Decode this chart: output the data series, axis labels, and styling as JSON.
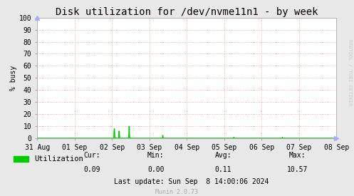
{
  "title": "Disk utilization for /dev/nvme11n1 - by week",
  "ylabel": "% busy",
  "bg_color": "#e8e8e8",
  "plot_bg_color": "#ffffff",
  "grid_color": "#ff9999",
  "line_color": "#00cc00",
  "fill_color": "#00cc00",
  "ylim": [
    0,
    100
  ],
  "yticks": [
    0,
    10,
    20,
    30,
    40,
    50,
    60,
    70,
    80,
    90,
    100
  ],
  "xtick_labels": [
    "31 Aug",
    "01 Sep",
    "02 Sep",
    "03 Sep",
    "04 Sep",
    "05 Sep",
    "06 Sep",
    "07 Sep",
    "08 Sep"
  ],
  "legend_label": "Utilization",
  "legend_color": "#00cc00",
  "cur_label": "Cur:",
  "cur": "0.09",
  "min_label": "Min:",
  "min": "0.00",
  "avg_label": "Avg:",
  "avg": "0.11",
  "max_label": "Max:",
  "max": "10.57",
  "last_update": "Last update: Sun Sep  8 14:00:06 2024",
  "munin_version": "Munin 2.0.73",
  "rrdtool_label": "RRDTOOL / TOBI OETIKER",
  "title_fontsize": 10,
  "axis_fontsize": 7,
  "legend_fontsize": 7.5,
  "stats_fontsize": 7,
  "munin_fontsize": 6
}
